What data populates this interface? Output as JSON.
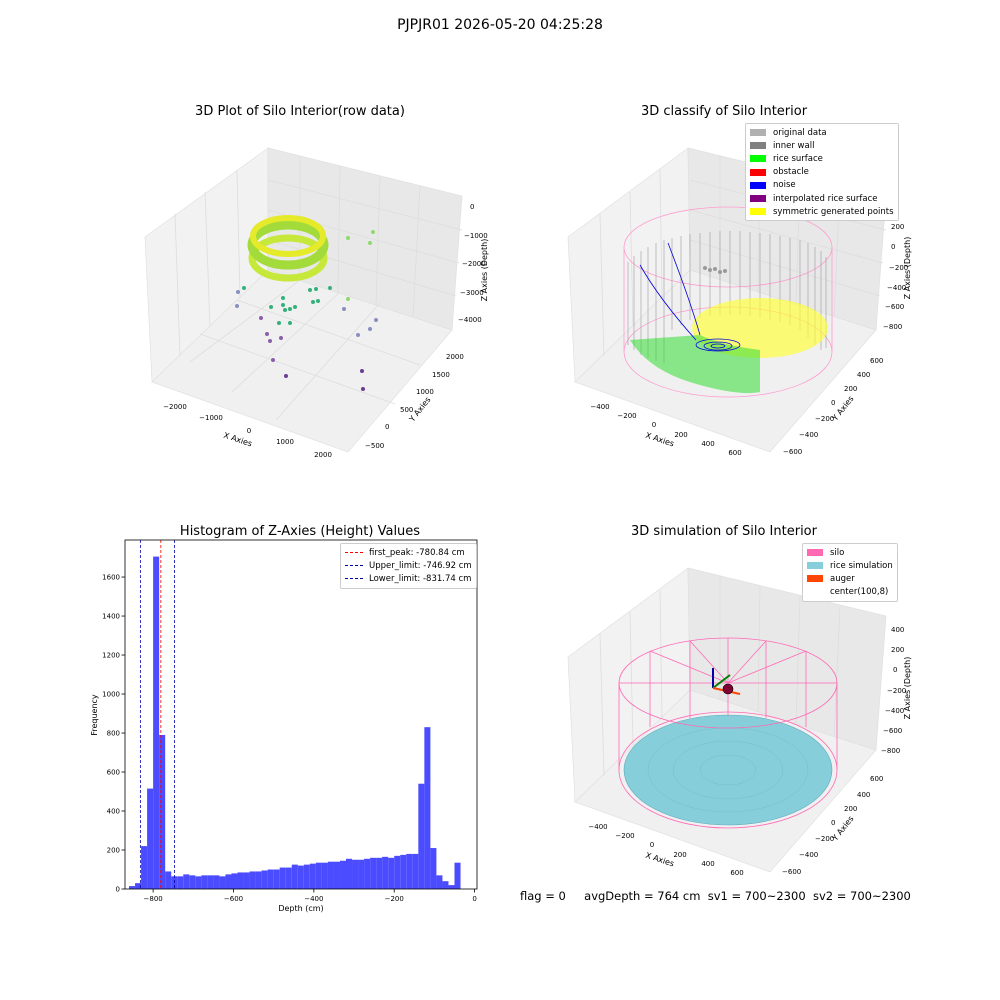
{
  "suptitle": "PJPJR01 2026-05-20 04:25:28",
  "status": {
    "flag": "flag = 0",
    "avg_depth": "avgDepth = 764 cm",
    "sv1": "sv1 = 700~2300",
    "sv2": "sv2 = 700~2300"
  },
  "colors": {
    "histogram_bar": "#4b4bff",
    "first_peak_line": "#ff0000",
    "limit_line": "#0000aa",
    "silo": "#ff69b4",
    "rice_simulation": "#87cedb",
    "auger": "#ff4500",
    "inner_wall": "#808080",
    "rice_surface": "#00ff00",
    "obstacle": "#ff0000",
    "noise": "#0000ff",
    "interpolated": "#800080",
    "symmetric": "#ffff00",
    "original": "#b0b0b0"
  },
  "chart_data": [
    {
      "type": "scatter",
      "projection": "3d",
      "title": "3D Plot of Silo Interior(row data)",
      "xlabel": "X Axies",
      "ylabel": "Y Axies",
      "zlabel": "Z Axies (Depth)",
      "x_ticks": [
        "−2000",
        "−1000",
        "0",
        "1000",
        "2000"
      ],
      "y_ticks": [
        "−500",
        "0",
        "500",
        "1000",
        "1500",
        "2000"
      ],
      "z_ticks": [
        "0",
        "−1000",
        "−2000",
        "−3000",
        "−4000"
      ],
      "grid": true
    },
    {
      "type": "scatter",
      "projection": "3d",
      "title": "3D classify of Silo Interior",
      "xlabel": "X Axies",
      "ylabel": "Y Axies",
      "zlabel": "Z Axies (Depth)",
      "x_ticks": [
        "−400",
        "−200",
        "0",
        "200",
        "400",
        "600"
      ],
      "y_ticks": [
        "−600",
        "−400",
        "−200",
        "0",
        "200",
        "400",
        "600"
      ],
      "z_ticks": [
        "200",
        "0",
        "−200",
        "−400",
        "−600",
        "−800"
      ],
      "legend": [
        "original data",
        "inner wall",
        "rice surface",
        "obstacle",
        "noise",
        "interpolated rice surface",
        "symmetric generated points"
      ],
      "legend_placement": "top-right",
      "grid": true
    },
    {
      "type": "bar",
      "title": "Histogram of Z-Axies (Height) Values",
      "xlabel": "Depth (cm)",
      "ylabel": "Frequency",
      "xlim": [
        -870,
        6
      ],
      "ylim": [
        0,
        1790
      ],
      "x_ticks": [
        -800,
        -600,
        -400,
        -200,
        0
      ],
      "x_tick_labels": [
        "−800",
        "−600",
        "−400",
        "−200",
        "0"
      ],
      "y_ticks": [
        0,
        200,
        400,
        600,
        800,
        1000,
        1200,
        1400,
        1600
      ],
      "bin_width": 15,
      "bins_start": [
        -860,
        -845,
        -830,
        -815,
        -800,
        -785,
        -770,
        -755,
        -740,
        -725,
        -710,
        -695,
        -680,
        -665,
        -650,
        -635,
        -620,
        -605,
        -590,
        -575,
        -560,
        -545,
        -530,
        -515,
        -500,
        -485,
        -470,
        -455,
        -440,
        -425,
        -410,
        -395,
        -380,
        -365,
        -350,
        -335,
        -320,
        -305,
        -290,
        -275,
        -260,
        -245,
        -230,
        -215,
        -200,
        -185,
        -170,
        -155,
        -140,
        -125,
        -110,
        -95,
        -80,
        -65,
        -50,
        -35,
        -20,
        -5
      ],
      "counts": [
        15,
        30,
        220,
        515,
        1705,
        790,
        90,
        65,
        65,
        75,
        70,
        65,
        70,
        70,
        70,
        65,
        75,
        80,
        85,
        85,
        90,
        90,
        95,
        100,
        100,
        110,
        110,
        125,
        120,
        125,
        130,
        135,
        135,
        140,
        140,
        145,
        155,
        150,
        150,
        155,
        160,
        160,
        165,
        160,
        170,
        175,
        180,
        180,
        540,
        830,
        210,
        70,
        40,
        20,
        135,
        0,
        0,
        0
      ],
      "vlines": [
        {
          "label": "first_peak: -780.84 cm",
          "x": -780.84
        },
        {
          "label": "Upper_limit: -746.92 cm",
          "x": -746.92
        },
        {
          "label": "Lower_limit: -831.74 cm",
          "x": -831.74
        }
      ],
      "legend_placement": "top-right"
    },
    {
      "type": "area",
      "projection": "3d",
      "title": "3D simulation of Silo Interior",
      "xlabel": "X Axies",
      "ylabel": "Y Axies",
      "zlabel": "Z Axies (Depth)",
      "x_ticks": [
        "−400",
        "−200",
        "0",
        "200",
        "400",
        "600"
      ],
      "y_ticks": [
        "−600",
        "−400",
        "−200",
        "0",
        "200",
        "400",
        "600"
      ],
      "z_ticks": [
        "400",
        "200",
        "0",
        "−200",
        "−400",
        "−600",
        "−800"
      ],
      "legend": [
        "silo",
        "rice simulation",
        "auger",
        "center(100,8)"
      ],
      "legend_placement": "top-right",
      "grid": true
    }
  ]
}
